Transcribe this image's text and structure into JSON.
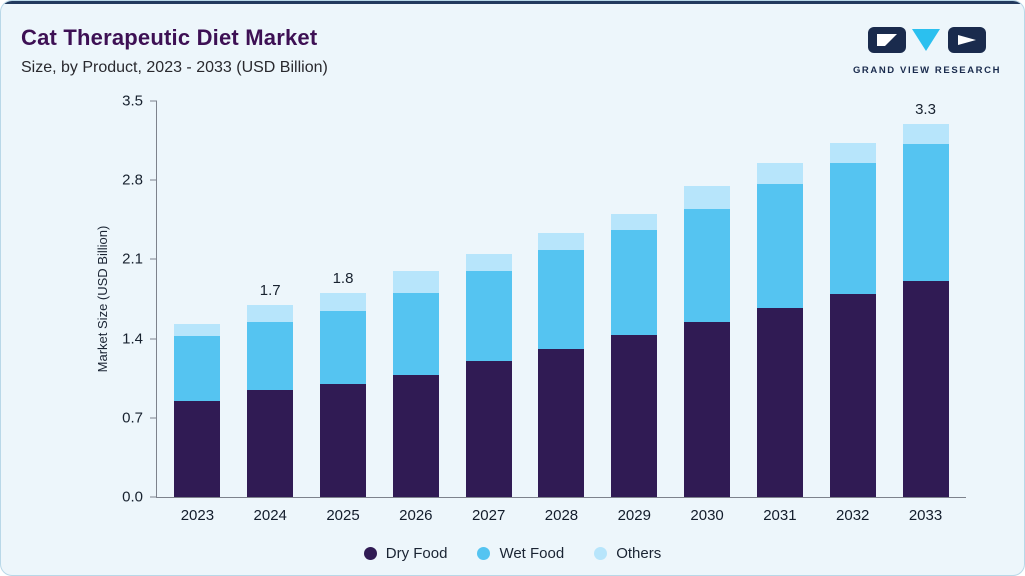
{
  "header": {
    "title": "Cat Therapeutic Diet Market",
    "subtitle": "Size, by Product, 2023 - 2033 (USD Billion)"
  },
  "logo": {
    "text": "GRAND VIEW RESEARCH"
  },
  "colors": {
    "card_background": "#edf6fb",
    "top_accent": "#223a5e",
    "title": "#3d1054",
    "dry_food": "#301b54",
    "wet_food": "#55c4f1",
    "others": "#b7e5fb"
  },
  "chart_data": {
    "type": "bar",
    "stacked": true,
    "title": "Cat Therapeutic Diet Market Size, by Product, 2023 - 2033 (USD Billion)",
    "xlabel": "",
    "ylabel": "Market Size (USD Billion)",
    "ylim": [
      0,
      3.5
    ],
    "ytick_labels": [
      "0.0",
      "0.7",
      "1.4",
      "2.1",
      "2.8",
      "3.5"
    ],
    "grid": false,
    "legend_position": "bottom",
    "categories": [
      "2023",
      "2024",
      "2025",
      "2026",
      "2027",
      "2028",
      "2029",
      "2030",
      "2031",
      "2032",
      "2033"
    ],
    "series": [
      {
        "name": "Dry Food",
        "color": "#301b54",
        "values": [
          0.85,
          0.95,
          1.0,
          1.08,
          1.2,
          1.31,
          1.43,
          1.55,
          1.67,
          1.79,
          1.91
        ]
      },
      {
        "name": "Wet Food",
        "color": "#55c4f1",
        "values": [
          0.57,
          0.6,
          0.64,
          0.72,
          0.8,
          0.87,
          0.93,
          1.0,
          1.1,
          1.16,
          1.21
        ]
      },
      {
        "name": "Others",
        "color": "#b7e5fb",
        "values": [
          0.11,
          0.15,
          0.16,
          0.2,
          0.15,
          0.15,
          0.14,
          0.2,
          0.18,
          0.18,
          0.18
        ]
      }
    ],
    "total_labels": {
      "2024": "1.7",
      "2025": "1.8",
      "2033": "3.3"
    }
  }
}
